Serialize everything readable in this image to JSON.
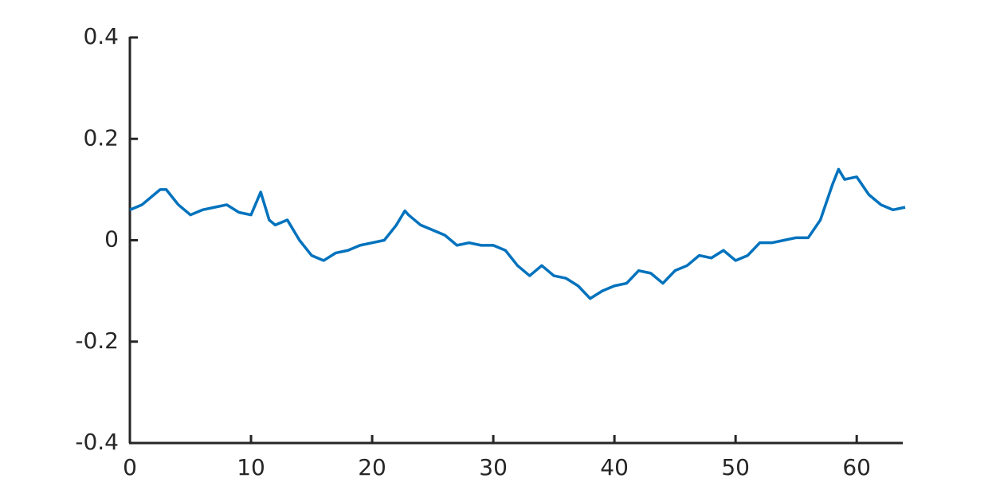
{
  "chart_data": {
    "type": "line",
    "x": [
      0,
      1,
      2,
      2.5,
      3,
      4,
      5,
      6,
      7,
      8,
      9,
      10,
      10.8,
      11.5,
      12,
      13,
      14,
      15,
      16,
      17,
      18,
      19,
      20,
      21,
      22,
      22.7,
      23,
      24,
      25,
      26,
      27,
      28,
      29,
      30,
      31,
      32,
      33,
      34,
      35,
      36,
      37,
      38,
      39,
      40,
      41,
      42,
      43,
      44,
      45,
      46,
      47,
      48,
      49,
      50,
      51,
      52,
      53,
      54,
      55,
      56,
      57,
      58,
      58.5,
      59,
      60,
      61,
      62,
      63,
      64
    ],
    "series": [
      {
        "color": "#0072bd",
        "values": [
          0.06,
          0.07,
          0.09,
          0.1,
          0.1,
          0.07,
          0.05,
          0.06,
          0.065,
          0.07,
          0.055,
          0.05,
          0.095,
          0.04,
          0.03,
          0.04,
          0.0,
          -0.03,
          -0.04,
          -0.025,
          -0.02,
          -0.01,
          -0.005,
          0.0,
          0.03,
          0.058,
          0.05,
          0.03,
          0.02,
          0.01,
          -0.01,
          -0.005,
          -0.01,
          -0.01,
          -0.02,
          -0.05,
          -0.07,
          -0.05,
          -0.07,
          -0.075,
          -0.09,
          -0.115,
          -0.1,
          -0.09,
          -0.085,
          -0.06,
          -0.065,
          -0.085,
          -0.06,
          -0.05,
          -0.03,
          -0.035,
          -0.02,
          -0.04,
          -0.03,
          -0.005,
          -0.005,
          0.0,
          0.005,
          0.005,
          0.04,
          0.11,
          0.14,
          0.12,
          0.125,
          0.09,
          0.07,
          0.06,
          0.065
        ]
      }
    ],
    "xlim": [
      0,
      64
    ],
    "xticks": [
      0,
      10,
      20,
      30,
      40,
      50,
      60
    ],
    "ylim": [
      -0.4,
      0.4
    ],
    "yticks": [
      -0.4,
      -0.2,
      0,
      0.2,
      0.4
    ]
  }
}
